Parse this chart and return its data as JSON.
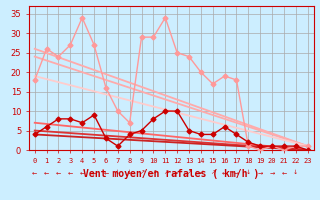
{
  "background_color": "#cceeff",
  "grid_color": "#aaaaaa",
  "x_label": "Vent moyen/en rafales ( km/h )",
  "x_ticks": [
    0,
    1,
    2,
    3,
    4,
    5,
    6,
    7,
    8,
    9,
    10,
    11,
    12,
    13,
    14,
    15,
    16,
    17,
    18,
    19,
    20,
    21,
    22,
    23
  ],
  "y_ticks": [
    0,
    5,
    10,
    15,
    20,
    25,
    30,
    35
  ],
  "ylim": [
    0,
    37
  ],
  "xlim": [
    -0.5,
    23.5
  ],
  "series": [
    {
      "comment": "pink scattered rafales line with diamond markers",
      "x": [
        0,
        1,
        2,
        3,
        4,
        5,
        6,
        7,
        8,
        9,
        10,
        11,
        12,
        13,
        14,
        15,
        16,
        17,
        18,
        19,
        20,
        21,
        22,
        23
      ],
      "y": [
        18,
        26,
        24,
        27,
        34,
        27,
        16,
        10,
        7,
        29,
        29,
        34,
        25,
        24,
        20,
        17,
        19,
        18,
        1,
        0,
        1,
        0,
        1,
        1
      ],
      "color": "#ff9999",
      "lw": 1.0,
      "marker": "D",
      "ms": 2.5
    },
    {
      "comment": "upper pink trend line - straight diagonal, from ~26 to ~1",
      "x": [
        0,
        23
      ],
      "y": [
        26,
        1
      ],
      "color": "#ffaaaa",
      "lw": 1.3,
      "marker": null,
      "ms": 0
    },
    {
      "comment": "second pink trend line - straight diagonal, from ~24 to ~1",
      "x": [
        0,
        23
      ],
      "y": [
        24,
        1
      ],
      "color": "#ffaaaa",
      "lw": 1.3,
      "marker": null,
      "ms": 0
    },
    {
      "comment": "third pink trend line - straight diagonal from ~19 down to ~1",
      "x": [
        0,
        23
      ],
      "y": [
        19,
        1
      ],
      "color": "#ffcccc",
      "lw": 1.3,
      "marker": null,
      "ms": 0
    },
    {
      "comment": "red scattered vent moyen line with diamond markers",
      "x": [
        0,
        1,
        2,
        3,
        4,
        5,
        6,
        7,
        8,
        9,
        10,
        11,
        12,
        13,
        14,
        15,
        16,
        17,
        18,
        19,
        20,
        21,
        22,
        23
      ],
      "y": [
        4,
        6,
        8,
        8,
        7,
        9,
        3,
        1,
        4,
        5,
        8,
        10,
        10,
        5,
        4,
        4,
        6,
        4,
        2,
        1,
        1,
        1,
        1,
        0
      ],
      "color": "#cc0000",
      "lw": 1.0,
      "marker": "D",
      "ms": 2.5
    },
    {
      "comment": "upper red trend line straight diagonal from ~7 to ~0",
      "x": [
        0,
        23
      ],
      "y": [
        7,
        0
      ],
      "color": "#ff6666",
      "lw": 1.3,
      "marker": null,
      "ms": 0
    },
    {
      "comment": "lower red trend line straight diagonal from ~5 to ~0",
      "x": [
        0,
        23
      ],
      "y": [
        5,
        0
      ],
      "color": "#dd3333",
      "lw": 1.3,
      "marker": null,
      "ms": 0
    },
    {
      "comment": "bottom red trend line straight diagonal from ~4 to ~0",
      "x": [
        0,
        23
      ],
      "y": [
        4,
        0
      ],
      "color": "#cc2222",
      "lw": 1.3,
      "marker": null,
      "ms": 0
    }
  ]
}
